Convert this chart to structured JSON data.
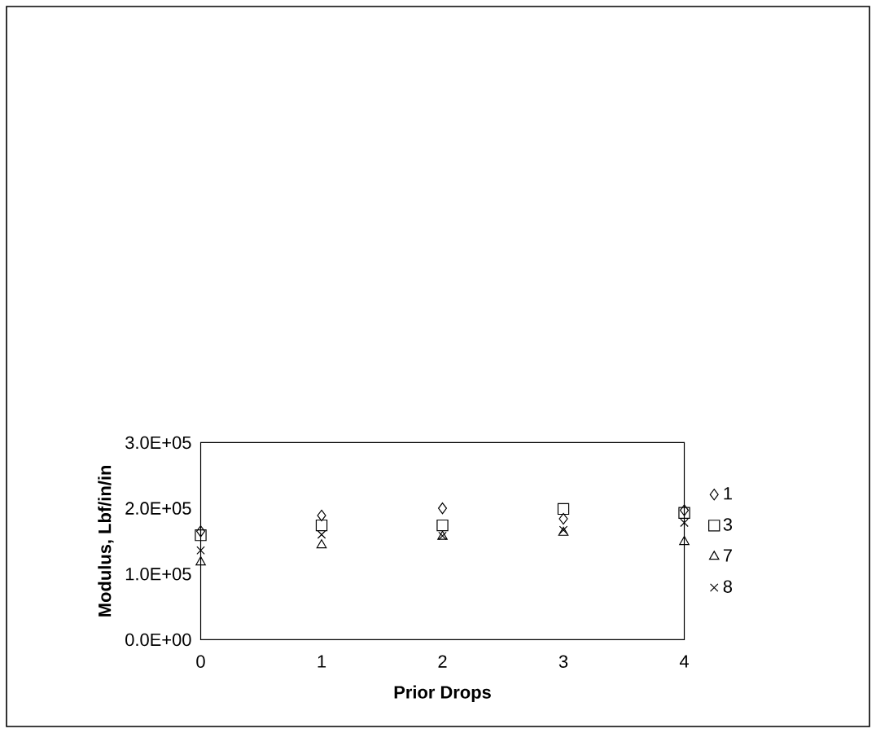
{
  "chart_data": {
    "type": "scatter",
    "xlabel": "Prior Drops",
    "ylabel": "Modulus, Lbf/in/in",
    "x": [
      0,
      1,
      2,
      3,
      4
    ],
    "series": [
      {
        "name": "1",
        "color": "#000000",
        "marker": "diamond",
        "values": [
          165000,
          189000,
          200000,
          184000,
          197000
        ]
      },
      {
        "name": "3",
        "color": "#000000",
        "marker": "square",
        "values": [
          159000,
          174000,
          174000,
          199000,
          193000
        ]
      },
      {
        "name": "7",
        "color": "#000000",
        "marker": "triangle",
        "values": [
          118000,
          144000,
          157000,
          163000,
          149000
        ]
      },
      {
        "name": "8",
        "color": "#000000",
        "marker": "cross",
        "values": [
          136000,
          160000,
          158000,
          167000,
          178000
        ]
      }
    ],
    "xlim": [
      0,
      4
    ],
    "xticks": [
      0,
      1,
      2,
      3,
      4
    ],
    "ylim": [
      0,
      300000
    ],
    "yticks": [
      {
        "value": 0,
        "label": "0.0E+00"
      },
      {
        "value": 100000,
        "label": "1.0E+05"
      },
      {
        "value": 200000,
        "label": "2.0E+05"
      },
      {
        "value": 300000,
        "label": "3.0E+05"
      }
    ],
    "legend": "right",
    "grid": false
  }
}
